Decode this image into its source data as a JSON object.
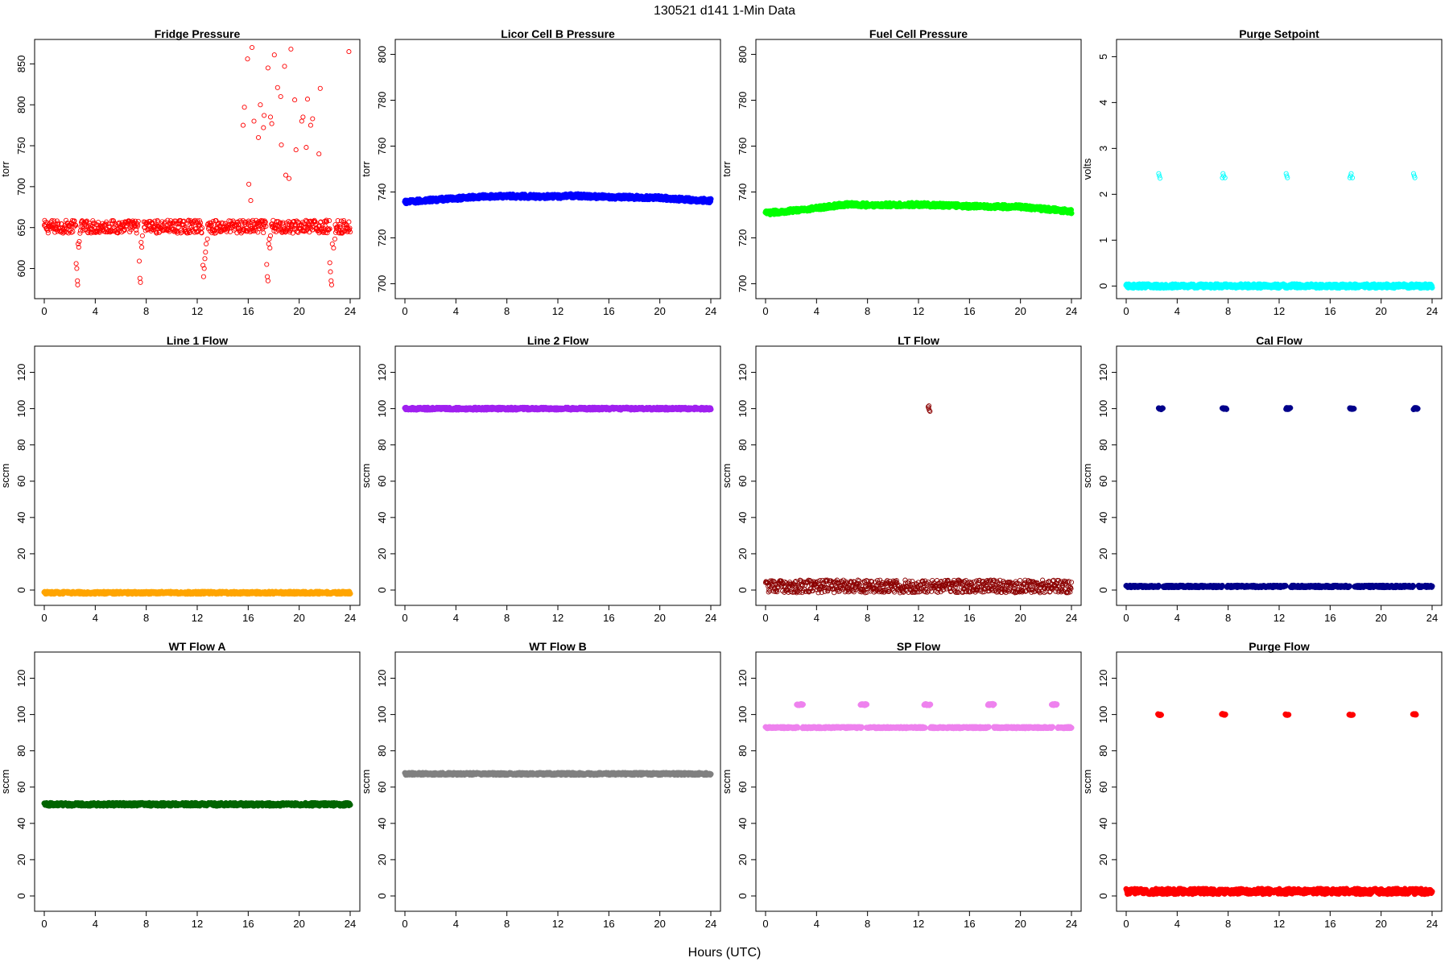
{
  "figure": {
    "title": "130521    d141    1-Min Data",
    "xlabel": "Hours (UTC)"
  },
  "chart_data": [
    {
      "type": "scatter",
      "title": "Fridge Pressure",
      "ylabel": "torr",
      "color": "#ff0000",
      "marker": "open",
      "xlim": [
        0,
        24
      ],
      "ylim": [
        573,
        870
      ],
      "x_ticks": [
        0,
        4,
        8,
        12,
        16,
        20,
        24
      ],
      "y_ticks": [
        600,
        650,
        700,
        750,
        800,
        850
      ],
      "series": [
        {
          "kind": "band",
          "base": 651,
          "spread": 8,
          "x_range": [
            0,
            24
          ],
          "gaps": [
            [
              2.5,
              2.8
            ],
            [
              7.4,
              7.8
            ],
            [
              12.4,
              12.8
            ],
            [
              17.4,
              17.8
            ],
            [
              22.4,
              22.8
            ]
          ]
        },
        {
          "kind": "points",
          "points": [
            [
              2.5,
              606
            ],
            [
              2.55,
              600
            ],
            [
              2.6,
              585
            ],
            [
              2.62,
              580
            ],
            [
              2.65,
              630
            ],
            [
              2.7,
              626
            ],
            [
              2.75,
              633
            ],
            [
              7.45,
              609
            ],
            [
              7.5,
              588
            ],
            [
              7.55,
              583
            ],
            [
              7.6,
              632
            ],
            [
              7.65,
              626
            ],
            [
              7.7,
              640
            ],
            [
              12.45,
              604
            ],
            [
              12.5,
              590
            ],
            [
              12.55,
              600
            ],
            [
              12.6,
              612
            ],
            [
              12.65,
              620
            ],
            [
              12.7,
              630
            ],
            [
              12.8,
              636
            ],
            [
              17.45,
              605
            ],
            [
              17.5,
              590
            ],
            [
              17.55,
              585
            ],
            [
              17.6,
              630
            ],
            [
              17.65,
              636
            ],
            [
              17.7,
              625
            ],
            [
              17.75,
              640
            ],
            [
              22.4,
              607
            ],
            [
              22.45,
              596
            ],
            [
              22.5,
              585
            ],
            [
              22.55,
              580
            ],
            [
              22.6,
              630
            ],
            [
              22.7,
              625
            ],
            [
              22.8,
              636
            ],
            [
              15.6,
              775
            ],
            [
              15.7,
              797
            ],
            [
              15.95,
              856
            ],
            [
              16.05,
              703
            ],
            [
              16.2,
              683
            ],
            [
              16.3,
              870
            ],
            [
              16.45,
              780
            ],
            [
              16.8,
              760
            ],
            [
              16.95,
              800
            ],
            [
              17.2,
              772
            ],
            [
              17.25,
              787
            ],
            [
              17.55,
              845
            ],
            [
              17.75,
              785
            ],
            [
              17.85,
              777
            ],
            [
              18.05,
              861
            ],
            [
              18.3,
              821
            ],
            [
              18.55,
              810
            ],
            [
              18.6,
              751
            ],
            [
              18.85,
              847
            ],
            [
              18.95,
              714
            ],
            [
              19.2,
              710
            ],
            [
              19.35,
              868
            ],
            [
              19.65,
              806
            ],
            [
              19.75,
              745
            ],
            [
              20.2,
              780
            ],
            [
              20.3,
              785
            ],
            [
              20.55,
              748
            ],
            [
              20.65,
              807
            ],
            [
              20.9,
              775
            ],
            [
              21.05,
              783
            ],
            [
              21.55,
              740
            ],
            [
              21.65,
              820
            ],
            [
              23.9,
              865
            ]
          ]
        }
      ]
    },
    {
      "type": "scatter",
      "title": "Licor Cell B Pressure",
      "ylabel": "torr",
      "color": "#0000ff",
      "marker": "filled",
      "xlim": [
        0,
        24
      ],
      "ylim": [
        697,
        803
      ],
      "x_ticks": [
        0,
        4,
        8,
        12,
        16,
        20,
        24
      ],
      "y_ticks": [
        700,
        720,
        740,
        760,
        780,
        800
      ],
      "series": [
        {
          "kind": "curve",
          "knots": [
            [
              0,
              735.5
            ],
            [
              2,
              736.5
            ],
            [
              4,
              737.2
            ],
            [
              6,
              738
            ],
            [
              8,
              738.2
            ],
            [
              10,
              738.1
            ],
            [
              12,
              738
            ],
            [
              13,
              738.4
            ],
            [
              16,
              737.8
            ],
            [
              20,
              737.5
            ],
            [
              22,
              736.7
            ],
            [
              24,
              736.2
            ]
          ],
          "spread": 0.8
        }
      ]
    },
    {
      "type": "scatter",
      "title": "Fuel Cell Pressure",
      "ylabel": "torr",
      "color": "#00ff00",
      "marker": "filled",
      "xlim": [
        0,
        24
      ],
      "ylim": [
        697,
        803
      ],
      "x_ticks": [
        0,
        4,
        8,
        12,
        16,
        20,
        24
      ],
      "y_ticks": [
        700,
        720,
        740,
        760,
        780,
        800
      ],
      "series": [
        {
          "kind": "curve",
          "knots": [
            [
              0,
              730.8
            ],
            [
              2,
              731.8
            ],
            [
              4,
              733
            ],
            [
              6,
              734.3
            ],
            [
              6.5,
              734.7
            ],
            [
              8,
              734.3
            ],
            [
              12,
              734.5
            ],
            [
              16,
              733.8
            ],
            [
              20,
              733.5
            ],
            [
              24,
              731.5
            ]
          ],
          "spread": 0.8
        }
      ]
    },
    {
      "type": "scatter",
      "title": "Purge Setpoint",
      "ylabel": "volts",
      "color": "#00ffff",
      "marker": "filled",
      "xlim": [
        0,
        24
      ],
      "ylim": [
        -0.1,
        5.2
      ],
      "x_ticks": [
        0,
        4,
        8,
        12,
        16,
        20,
        24
      ],
      "y_ticks": [
        0,
        1,
        2,
        3,
        4,
        5
      ],
      "series": [
        {
          "kind": "band",
          "base": 0,
          "spread": 0.04,
          "x_range": [
            0,
            24
          ],
          "gaps": []
        },
        {
          "kind": "points",
          "marker": "open",
          "points": [
            [
              2.55,
              2.45
            ],
            [
              2.6,
              2.4
            ],
            [
              2.65,
              2.35
            ],
            [
              7.6,
              2.45
            ],
            [
              7.65,
              2.4
            ],
            [
              7.55,
              2.36
            ],
            [
              7.75,
              2.36
            ],
            [
              12.55,
              2.45
            ],
            [
              12.6,
              2.4
            ],
            [
              12.65,
              2.36
            ],
            [
              17.65,
              2.45
            ],
            [
              17.6,
              2.4
            ],
            [
              17.55,
              2.36
            ],
            [
              17.75,
              2.36
            ],
            [
              22.55,
              2.45
            ],
            [
              22.6,
              2.4
            ],
            [
              22.65,
              2.36
            ]
          ]
        }
      ]
    },
    {
      "type": "scatter",
      "title": "Line 1 Flow",
      "ylabel": "sccm",
      "color": "#ffa500",
      "marker": "filled",
      "xlim": [
        0,
        24
      ],
      "ylim": [
        -4,
        130
      ],
      "x_ticks": [
        0,
        4,
        8,
        12,
        16,
        20,
        24
      ],
      "y_ticks": [
        0,
        20,
        40,
        60,
        80,
        100,
        120
      ],
      "series": [
        {
          "kind": "band",
          "base": -1.5,
          "spread": 0.6,
          "x_range": [
            0,
            24
          ],
          "gaps": []
        }
      ]
    },
    {
      "type": "scatter",
      "title": "Line 2 Flow",
      "ylabel": "sccm",
      "color": "#a020f0",
      "marker": "filled",
      "xlim": [
        0,
        24
      ],
      "ylim": [
        -4,
        130
      ],
      "x_ticks": [
        0,
        4,
        8,
        12,
        16,
        20,
        24
      ],
      "y_ticks": [
        0,
        20,
        40,
        60,
        80,
        100,
        120
      ],
      "series": [
        {
          "kind": "band",
          "base": 100,
          "spread": 0.6,
          "x_range": [
            0,
            24
          ],
          "gaps": []
        }
      ]
    },
    {
      "type": "scatter",
      "title": "LT Flow",
      "ylabel": "sccm",
      "color": "#8b0000",
      "marker": "open",
      "xlim": [
        0,
        24
      ],
      "ylim": [
        -4,
        130
      ],
      "x_ticks": [
        0,
        4,
        8,
        12,
        16,
        20,
        24
      ],
      "y_ticks": [
        0,
        20,
        40,
        60,
        80,
        100,
        120
      ],
      "series": [
        {
          "kind": "band",
          "base": 2,
          "spread": 3.5,
          "x_range": [
            0,
            24
          ],
          "gaps": [
            [
              12.8,
              12.95
            ]
          ]
        },
        {
          "kind": "points",
          "points": [
            [
              12.75,
              101
            ],
            [
              12.8,
              100
            ],
            [
              12.85,
              99
            ],
            [
              12.9,
              98.5
            ],
            [
              12.82,
              101.5
            ]
          ]
        }
      ]
    },
    {
      "type": "scatter",
      "title": "Cal Flow",
      "ylabel": "sccm",
      "color": "#00008b",
      "marker": "filled",
      "xlim": [
        0,
        24
      ],
      "ylim": [
        -4,
        130
      ],
      "x_ticks": [
        0,
        4,
        8,
        12,
        16,
        20,
        24
      ],
      "y_ticks": [
        0,
        20,
        40,
        60,
        80,
        100,
        120
      ],
      "series": [
        {
          "kind": "band",
          "base": 2,
          "spread": 0.5,
          "x_range": [
            0,
            24
          ],
          "gaps": [
            [
              2.55,
              2.9
            ],
            [
              7.55,
              7.9
            ],
            [
              12.55,
              12.9
            ],
            [
              17.55,
              17.9
            ],
            [
              22.55,
              22.9
            ]
          ]
        },
        {
          "kind": "segments",
          "level": 100,
          "ranges": [
            [
              2.55,
              2.9
            ],
            [
              7.55,
              7.9
            ],
            [
              12.55,
              12.9
            ],
            [
              17.55,
              17.9
            ],
            [
              22.55,
              22.9
            ]
          ]
        }
      ]
    },
    {
      "type": "scatter",
      "title": "WT Flow A",
      "ylabel": "sccm",
      "color": "#006400",
      "marker": "filled",
      "xlim": [
        0,
        24
      ],
      "ylim": [
        -4,
        130
      ],
      "x_ticks": [
        0,
        4,
        8,
        12,
        16,
        20,
        24
      ],
      "y_ticks": [
        0,
        20,
        40,
        60,
        80,
        100,
        120
      ],
      "series": [
        {
          "kind": "band",
          "base": 50.5,
          "spread": 0.8,
          "x_range": [
            0,
            24
          ],
          "gaps": []
        }
      ]
    },
    {
      "type": "scatter",
      "title": "WT Flow B",
      "ylabel": "sccm",
      "color": "#808080",
      "marker": "filled",
      "xlim": [
        0,
        24
      ],
      "ylim": [
        -4,
        130
      ],
      "x_ticks": [
        0,
        4,
        8,
        12,
        16,
        20,
        24
      ],
      "y_ticks": [
        0,
        20,
        40,
        60,
        80,
        100,
        120
      ],
      "series": [
        {
          "kind": "band",
          "base": 67.3,
          "spread": 0.6,
          "x_range": [
            0,
            24
          ],
          "gaps": []
        }
      ]
    },
    {
      "type": "scatter",
      "title": "SP Flow",
      "ylabel": "sccm",
      "color": "#ee82ee",
      "marker": "filled",
      "xlim": [
        0,
        24
      ],
      "ylim": [
        -4,
        130
      ],
      "x_ticks": [
        0,
        4,
        8,
        12,
        16,
        20,
        24
      ],
      "y_ticks": [
        0,
        20,
        40,
        60,
        80,
        100,
        120
      ],
      "series": [
        {
          "kind": "band",
          "base": 92.8,
          "spread": 0.4,
          "x_range": [
            0,
            24
          ],
          "gaps": [
            [
              2.55,
              2.9
            ],
            [
              7.55,
              7.9
            ],
            [
              12.55,
              12.9
            ],
            [
              17.55,
              17.9
            ],
            [
              22.55,
              22.9
            ]
          ]
        },
        {
          "kind": "segments",
          "level": 105.5,
          "ranges": [
            [
              2.45,
              2.95
            ],
            [
              7.45,
              7.95
            ],
            [
              12.45,
              12.95
            ],
            [
              17.45,
              17.95
            ],
            [
              22.45,
              22.85
            ]
          ]
        }
      ]
    },
    {
      "type": "scatter",
      "title": "Purge Flow",
      "ylabel": "sccm",
      "color": "#ff0000",
      "marker": "filled",
      "xlim": [
        0,
        24
      ],
      "ylim": [
        -4,
        130
      ],
      "x_ticks": [
        0,
        4,
        8,
        12,
        16,
        20,
        24
      ],
      "y_ticks": [
        0,
        20,
        40,
        60,
        80,
        100,
        120
      ],
      "series": [
        {
          "kind": "band",
          "base": 2.5,
          "spread": 1.5,
          "x_range": [
            0,
            24
          ],
          "gaps": []
        },
        {
          "kind": "segments",
          "level": 100,
          "ranges": [
            [
              2.5,
              2.75
            ],
            [
              7.5,
              7.8
            ],
            [
              12.5,
              12.75
            ],
            [
              17.5,
              17.8
            ],
            [
              22.5,
              22.75
            ]
          ]
        }
      ]
    }
  ]
}
